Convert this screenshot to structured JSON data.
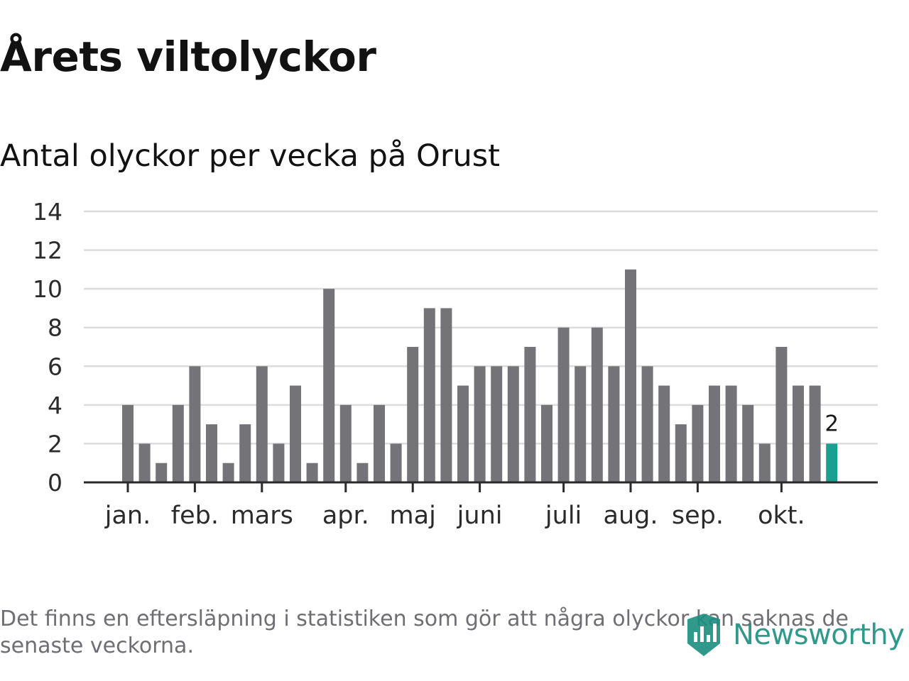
{
  "header": {
    "title": "Årets viltolyckor",
    "subtitle": "Antal olyckor per vecka på Orust"
  },
  "footer": {
    "note": "Det finns en eftersläpning i statistiken som gör att några olyckor kan saknas de senaste veckorna.",
    "brand": "Newsworthy"
  },
  "colors": {
    "bar": "#737378",
    "highlight": "#1a9f90",
    "grid": "#dcdcdc",
    "axis": "#2a2a2a",
    "text": "#2b2b2b"
  },
  "chart_data": {
    "type": "bar",
    "title": "Antal olyckor per vecka på Orust",
    "xlabel": "",
    "ylabel": "",
    "ylim": [
      0,
      14
    ],
    "yticks": [
      0,
      2,
      4,
      6,
      8,
      10,
      12,
      14
    ],
    "grid": true,
    "weeks": [
      1,
      2,
      3,
      4,
      5,
      6,
      7,
      8,
      9,
      10,
      11,
      12,
      13,
      14,
      15,
      16,
      17,
      18,
      19,
      20,
      21,
      22,
      23,
      24,
      25,
      26,
      27,
      28,
      29,
      30,
      31,
      32,
      33,
      34,
      35,
      36,
      37,
      38,
      39,
      40,
      41,
      42,
      43
    ],
    "values": [
      4,
      2,
      1,
      4,
      6,
      3,
      1,
      3,
      6,
      2,
      5,
      1,
      10,
      4,
      1,
      4,
      2,
      7,
      9,
      9,
      5,
      6,
      6,
      6,
      7,
      4,
      8,
      6,
      8,
      6,
      11,
      6,
      5,
      3,
      4,
      5,
      5,
      4,
      2,
      7,
      5,
      5,
      2
    ],
    "highlight_index": 42,
    "highlight_label": "2",
    "month_ticks": [
      {
        "label": "jan.",
        "week": 1
      },
      {
        "label": "feb.",
        "week": 5
      },
      {
        "label": "mars",
        "week": 9
      },
      {
        "label": "apr.",
        "week": 14
      },
      {
        "label": "maj",
        "week": 18
      },
      {
        "label": "juni",
        "week": 22
      },
      {
        "label": "juli",
        "week": 27
      },
      {
        "label": "aug.",
        "week": 31
      },
      {
        "label": "sep.",
        "week": 35
      },
      {
        "label": "okt.",
        "week": 40
      }
    ]
  }
}
